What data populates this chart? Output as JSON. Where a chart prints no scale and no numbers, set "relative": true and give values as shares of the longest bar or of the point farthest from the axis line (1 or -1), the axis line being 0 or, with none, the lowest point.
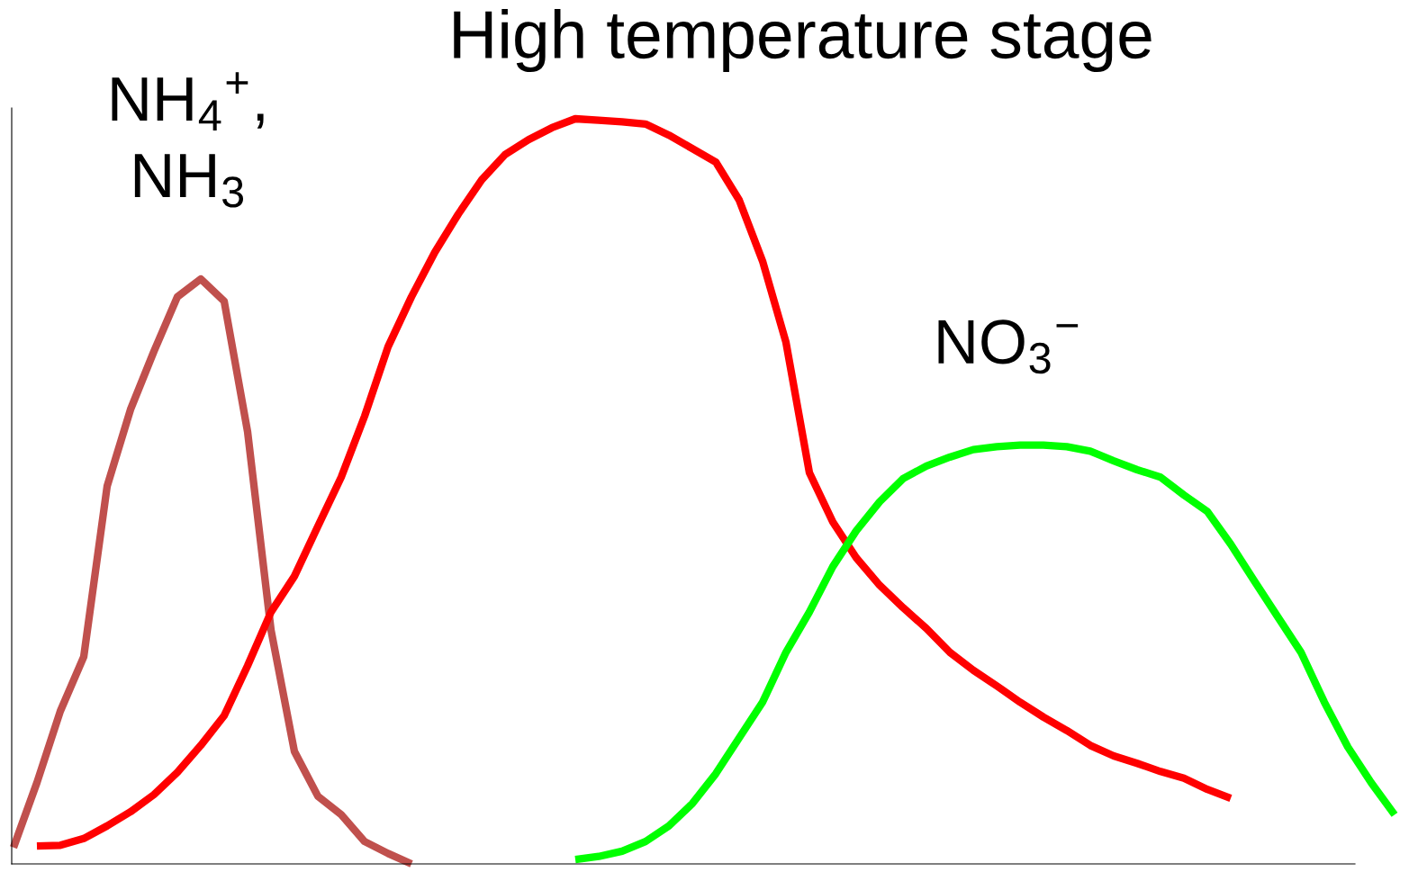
{
  "chart_data": {
    "type": "line",
    "title": "High temperature stage",
    "relative": true,
    "categories": [
      null,
      null,
      null,
      null,
      null,
      null,
      null,
      null,
      null,
      null,
      null,
      null,
      null,
      null,
      null,
      null,
      null,
      null,
      null,
      null,
      null,
      null,
      null,
      null,
      null,
      null,
      null,
      null,
      null,
      null,
      null,
      null,
      null,
      null,
      null,
      null,
      null,
      null,
      null,
      null,
      null,
      null,
      null,
      null,
      null,
      null,
      null,
      null,
      null,
      null,
      null,
      null,
      null,
      null,
      null,
      null,
      null,
      null,
      null,
      null
    ],
    "series": [
      {
        "name": "NH$_{4}$$^{+}$,\nNH$_{3}$",
        "color": "#c0504d",
        "values": [
          0.022,
          0.109,
          0.205,
          0.278,
          0.507,
          0.61,
          0.688,
          0.761,
          0.785,
          0.755,
          0.58,
          0.314,
          0.151,
          0.091,
          0.066,
          0.03,
          0.014,
          0.0,
          null,
          null,
          null,
          null,
          null,
          null,
          null,
          null,
          null,
          null,
          null,
          null,
          null,
          null,
          null,
          null,
          null,
          null,
          null,
          null,
          null,
          null,
          null,
          null,
          null,
          null,
          null,
          null,
          null,
          null,
          null,
          null,
          null,
          null,
          null,
          null,
          null,
          null,
          null,
          null,
          null,
          null
        ]
      },
      {
        "color": "#ff0000",
        "values": [
          null,
          0.024,
          0.025,
          0.034,
          0.051,
          0.07,
          0.093,
          0.123,
          0.159,
          0.199,
          0.266,
          0.338,
          0.386,
          0.453,
          0.519,
          0.601,
          0.694,
          0.761,
          0.821,
          0.872,
          0.918,
          0.952,
          0.972,
          0.988,
          1.0,
          0.998,
          0.996,
          0.993,
          0.978,
          0.96,
          0.942,
          0.891,
          0.809,
          0.7,
          0.525,
          0.459,
          0.411,
          0.374,
          0.344,
          0.316,
          0.284,
          0.26,
          0.239,
          0.217,
          0.197,
          0.179,
          0.159,
          0.145,
          0.135,
          0.124,
          0.115,
          0.1,
          0.088,
          null,
          null,
          null,
          null,
          null,
          null,
          null
        ]
      },
      {
        "name": "NO$_{3}$$^{−}$",
        "color": "#00ff00",
        "values": [
          null,
          null,
          null,
          null,
          null,
          null,
          null,
          null,
          null,
          null,
          null,
          null,
          null,
          null,
          null,
          null,
          null,
          null,
          null,
          null,
          null,
          null,
          null,
          null,
          0.006,
          0.01,
          0.017,
          0.03,
          0.051,
          0.081,
          0.121,
          0.169,
          0.217,
          0.284,
          0.338,
          0.399,
          0.447,
          0.486,
          0.517,
          0.534,
          0.546,
          0.556,
          0.56,
          0.562,
          0.562,
          0.56,
          0.554,
          0.541,
          0.529,
          0.519,
          0.495,
          0.473,
          0.429,
          0.38,
          0.332,
          0.284,
          0.217,
          0.157,
          0.109,
          0.066
        ]
      }
    ]
  }
}
